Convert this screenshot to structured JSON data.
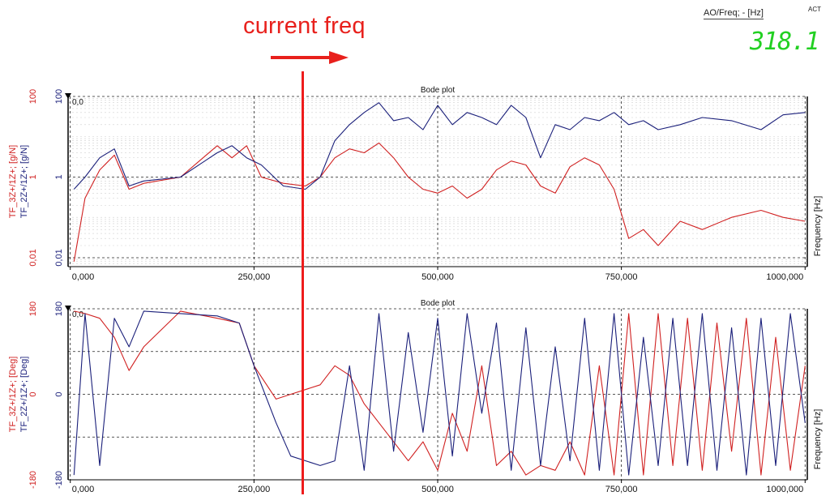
{
  "annotation": {
    "text": "current freq"
  },
  "readout": {
    "label": "AO/Freq; - [Hz]",
    "status": "ACT",
    "value": "318.1"
  },
  "colors": {
    "series_a": "#d02020",
    "series_b": "#1a1f7a",
    "cursor": "#ee1c1c",
    "readout": "#22d022"
  },
  "chart_data": [
    {
      "type": "line",
      "title": "Bode plot",
      "ylabel_left_red": "TF_3Z+/1Z+; [g/N]",
      "ylabel_left_blue": "TF_2Z+/1Z+; [g/N]",
      "ylabel_right": "Frequency [Hz]",
      "yscale": "log",
      "ylim": [
        0.006,
        100
      ],
      "yticks": [
        "100",
        "1",
        "0,01"
      ],
      "xlim": [
        -3000,
        1003000
      ],
      "xticks": [
        "0,000",
        "250,000",
        "500,000",
        "750,000",
        "1000,000"
      ],
      "xtick_values": [
        0,
        250000,
        500000,
        750000,
        1000000
      ],
      "corner_label": "0,0",
      "cursor_x": 318.1,
      "grid": true,
      "series": [
        {
          "color": "#d02020",
          "x": [
            5000,
            20000,
            40000,
            60000,
            80000,
            100000,
            150000,
            200000,
            220000,
            240000,
            260000,
            290000,
            320000,
            340000,
            360000,
            380000,
            400000,
            420000,
            440000,
            460000,
            480000,
            500000,
            520000,
            540000,
            560000,
            580000,
            600000,
            620000,
            640000,
            660000,
            680000,
            700000,
            720000,
            740000,
            760000,
            780000,
            800000,
            830000,
            860000,
            900000,
            940000,
            970000,
            1000000
          ],
          "y": [
            0.008,
            0.3,
            1.5,
            3.5,
            0.5,
            0.7,
            1.0,
            6.0,
            3.0,
            6.0,
            1.0,
            0.7,
            0.6,
            1.0,
            3.0,
            5.0,
            4.0,
            7.0,
            3.0,
            1.0,
            0.5,
            0.4,
            0.6,
            0.3,
            0.5,
            1.5,
            2.5,
            2.0,
            0.6,
            0.4,
            1.8,
            3.0,
            2.0,
            0.5,
            0.03,
            0.05,
            0.02,
            0.08,
            0.05,
            0.1,
            0.15,
            0.1,
            0.08
          ]
        },
        {
          "color": "#1a1f7a",
          "x": [
            5000,
            20000,
            40000,
            60000,
            80000,
            100000,
            150000,
            200000,
            220000,
            240000,
            260000,
            290000,
            320000,
            340000,
            360000,
            380000,
            400000,
            420000,
            440000,
            460000,
            480000,
            500000,
            520000,
            540000,
            560000,
            580000,
            600000,
            620000,
            640000,
            660000,
            680000,
            700000,
            720000,
            740000,
            760000,
            780000,
            800000,
            830000,
            860000,
            900000,
            940000,
            970000,
            1000000
          ],
          "y": [
            0.5,
            1.0,
            3.0,
            5.0,
            0.6,
            0.8,
            1.0,
            4.0,
            6.0,
            3.0,
            2.0,
            0.6,
            0.5,
            1.0,
            8.0,
            20.0,
            40.0,
            70.0,
            25.0,
            30.0,
            15.0,
            60.0,
            20.0,
            40.0,
            30.0,
            20.0,
            60.0,
            30.0,
            3.0,
            20.0,
            15.0,
            30.0,
            25.0,
            40.0,
            20.0,
            25.0,
            15.0,
            20.0,
            30.0,
            25.0,
            15.0,
            35.0,
            40.0
          ]
        }
      ]
    },
    {
      "type": "line",
      "title": "Bode plot",
      "ylabel_left_red": "TF_3Z+/1Z+; [Deg]",
      "ylabel_left_blue": "TF_2Z+/1Z+; [Deg]",
      "ylabel_right": "Frequency [Hz]",
      "yscale": "linear",
      "ylim": [
        -180,
        180
      ],
      "yticks": [
        "180",
        "0",
        "-180"
      ],
      "xlim": [
        -3000,
        1003000
      ],
      "xticks": [
        "0,000",
        "250,000",
        "500,000",
        "750,000",
        "1000,000"
      ],
      "xtick_values": [
        0,
        250000,
        500000,
        750000,
        1000000
      ],
      "corner_label": "0,0",
      "grid": true,
      "series": [
        {
          "color": "#d02020",
          "x": [
            5000,
            20000,
            40000,
            60000,
            80000,
            100000,
            150000,
            200000,
            230000,
            250000,
            280000,
            300000,
            340000,
            360000,
            380000,
            400000,
            420000,
            440000,
            460000,
            480000,
            500000,
            520000,
            540000,
            560000,
            580000,
            600000,
            620000,
            640000,
            660000,
            680000,
            700000,
            720000,
            740000,
            760000,
            780000,
            800000,
            820000,
            840000,
            860000,
            880000,
            900000,
            920000,
            940000,
            960000,
            980000,
            1000000
          ],
          "y": [
            175,
            170,
            160,
            120,
            50,
            100,
            175,
            160,
            150,
            60,
            -10,
            0,
            20,
            60,
            40,
            -20,
            -60,
            -100,
            -140,
            -100,
            -160,
            -40,
            -120,
            60,
            -150,
            -120,
            -170,
            -150,
            -160,
            -100,
            -170,
            60,
            -170,
            170,
            -170,
            170,
            -150,
            160,
            -160,
            150,
            -120,
            160,
            -170,
            120,
            -160,
            60
          ]
        },
        {
          "color": "#1a1f7a",
          "x": [
            5000,
            20000,
            40000,
            60000,
            80000,
            100000,
            150000,
            200000,
            230000,
            250000,
            280000,
            300000,
            340000,
            360000,
            380000,
            400000,
            420000,
            440000,
            460000,
            480000,
            500000,
            520000,
            540000,
            560000,
            580000,
            600000,
            620000,
            640000,
            660000,
            680000,
            700000,
            720000,
            740000,
            760000,
            780000,
            800000,
            820000,
            840000,
            860000,
            880000,
            900000,
            920000,
            940000,
            960000,
            980000,
            1000000
          ],
          "y": [
            -170,
            170,
            -150,
            160,
            100,
            175,
            170,
            165,
            150,
            60,
            -60,
            -130,
            -150,
            -140,
            60,
            -160,
            170,
            -120,
            130,
            -80,
            160,
            -130,
            170,
            -40,
            150,
            -160,
            140,
            -150,
            100,
            -140,
            160,
            -160,
            170,
            -170,
            120,
            -150,
            160,
            -150,
            170,
            -160,
            140,
            -170,
            160,
            -150,
            170,
            -60
          ]
        }
      ]
    }
  ]
}
